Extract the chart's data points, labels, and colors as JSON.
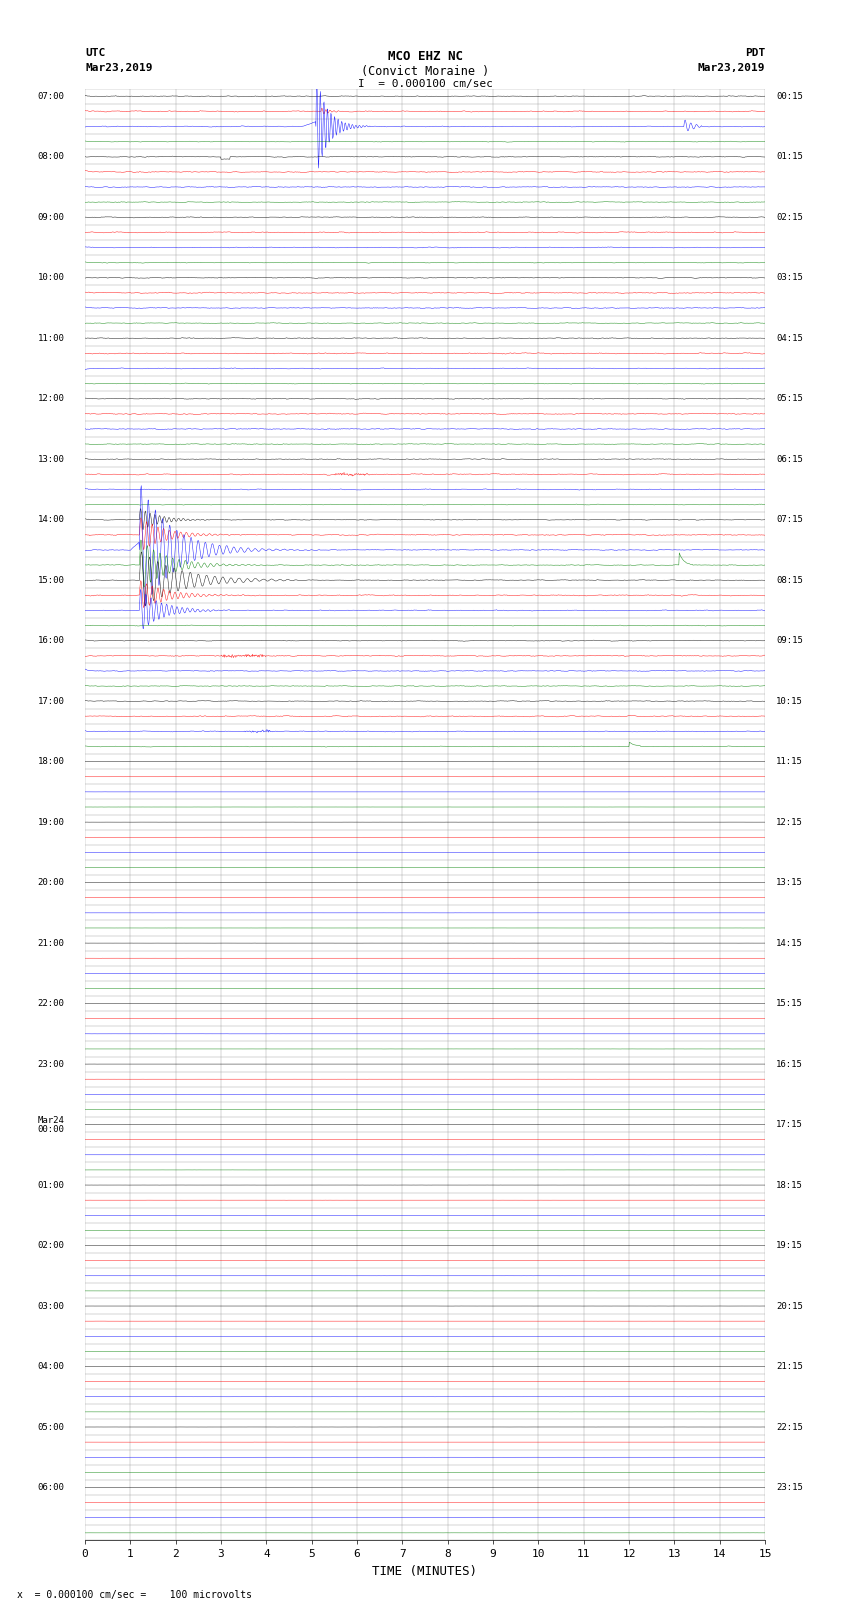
{
  "title_line1": "MCO EHZ NC",
  "title_line2": "(Convict Moraine )",
  "scale_label": "= 0.000100 cm/sec",
  "left_label_line1": "UTC",
  "left_label_line2": "Mar23,2019",
  "right_label_line1": "PDT",
  "right_label_line2": "Mar23,2019",
  "bottom_note": "= 0.000100 cm/sec =    100 microvolts",
  "xlabel": "TIME (MINUTES)",
  "xlim": [
    0,
    15
  ],
  "xticks": [
    0,
    1,
    2,
    3,
    4,
    5,
    6,
    7,
    8,
    9,
    10,
    11,
    12,
    13,
    14,
    15
  ],
  "num_traces": 96,
  "trace_colors_cycle": [
    "black",
    "red",
    "blue",
    "green"
  ],
  "noise_amplitude": 0.012,
  "bg_color": "white",
  "grid_color": "#888888",
  "fig_width": 8.5,
  "fig_height": 16.13,
  "dpi": 100,
  "utc_labels": [
    "07:00",
    "",
    "",
    "",
    "08:00",
    "",
    "",
    "",
    "09:00",
    "",
    "",
    "",
    "10:00",
    "",
    "",
    "",
    "11:00",
    "",
    "",
    "",
    "12:00",
    "",
    "",
    "",
    "13:00",
    "",
    "",
    "",
    "14:00",
    "",
    "",
    "",
    "15:00",
    "",
    "",
    "",
    "16:00",
    "",
    "",
    "",
    "17:00",
    "",
    "",
    "",
    "18:00",
    "",
    "",
    "",
    "19:00",
    "",
    "",
    "",
    "20:00",
    "",
    "",
    "",
    "21:00",
    "",
    "",
    "",
    "22:00",
    "",
    "",
    "",
    "23:00",
    "",
    "",
    "",
    "Mar24\n00:00",
    "",
    "",
    "",
    "01:00",
    "",
    "",
    "",
    "02:00",
    "",
    "",
    "",
    "03:00",
    "",
    "",
    "",
    "04:00",
    "",
    "",
    "",
    "05:00",
    "",
    "",
    "",
    "06:00",
    "",
    "",
    ""
  ],
  "pdt_labels": [
    "00:15",
    "",
    "",
    "",
    "01:15",
    "",
    "",
    "",
    "02:15",
    "",
    "",
    "",
    "03:15",
    "",
    "",
    "",
    "04:15",
    "",
    "",
    "",
    "05:15",
    "",
    "",
    "",
    "06:15",
    "",
    "",
    "",
    "07:15",
    "",
    "",
    "",
    "08:15",
    "",
    "",
    "",
    "09:15",
    "",
    "",
    "",
    "10:15",
    "",
    "",
    "",
    "11:15",
    "",
    "",
    "",
    "12:15",
    "",
    "",
    "",
    "13:15",
    "",
    "",
    "",
    "14:15",
    "",
    "",
    "",
    "15:15",
    "",
    "",
    "",
    "16:15",
    "",
    "",
    "",
    "17:15",
    "",
    "",
    "",
    "18:15",
    "",
    "",
    "",
    "19:15",
    "",
    "",
    "",
    "20:15",
    "",
    "",
    "",
    "21:15",
    "",
    "",
    "",
    "22:15",
    "",
    "",
    "",
    "23:15",
    "",
    "",
    ""
  ]
}
